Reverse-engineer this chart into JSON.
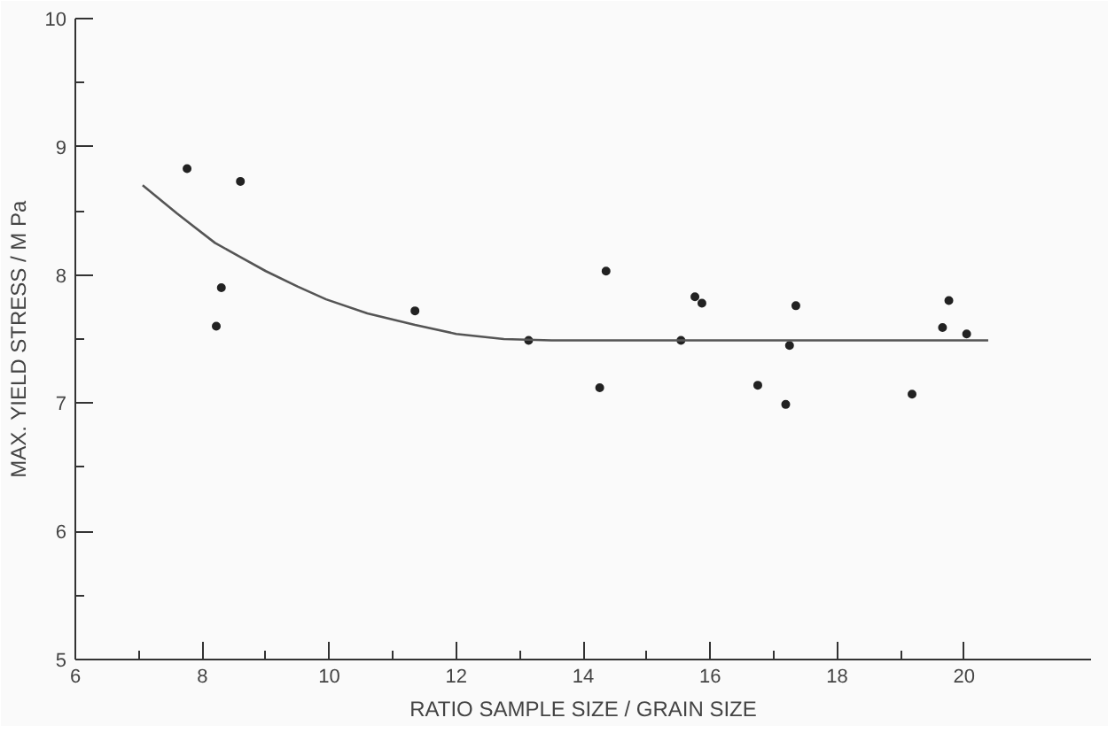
{
  "chart_data": {
    "type": "scatter",
    "xlabel": "RATIO SAMPLE SIZE / GRAIN SIZE",
    "ylabel": "MAX. YIELD STRESS / M Pa",
    "xlim": [
      6,
      22
    ],
    "ylim": [
      5,
      10
    ],
    "xticks": [
      6,
      {
        "value": 7,
        "label": null
      },
      8,
      {
        "value": 9,
        "label": null
      },
      10,
      {
        "value": 11,
        "label": null
      },
      12,
      {
        "value": 13,
        "label": null
      },
      14,
      {
        "value": 15,
        "label": null
      },
      16,
      {
        "value": 17,
        "label": null
      },
      18,
      {
        "value": 19,
        "label": null
      },
      20
    ],
    "yticks": [
      5,
      {
        "value": 5.5,
        "label": null
      },
      6,
      {
        "value": 6.5,
        "label": null
      },
      7,
      {
        "value": 7.5,
        "label": null
      },
      8,
      {
        "value": 8.5,
        "label": null
      },
      9,
      {
        "value": 9.5,
        "label": null
      },
      10
    ],
    "grid": false,
    "series": [
      {
        "marker": "circle",
        "color": "#222222",
        "x": [
          7.76,
          8.6,
          8.3,
          8.22,
          11.35,
          13.14,
          14.36,
          14.26,
          15.54,
          15.76,
          15.87,
          16.75,
          17.19,
          17.25,
          17.35,
          19.18,
          19.66,
          19.76,
          20.04
        ],
        "values": [
          8.83,
          8.73,
          7.9,
          7.6,
          7.72,
          7.49,
          8.03,
          7.12,
          7.49,
          7.83,
          7.78,
          7.14,
          6.99,
          7.45,
          7.76,
          7.07,
          7.59,
          7.8,
          7.54
        ]
      },
      {
        "type": "line",
        "color": "#555555",
        "line_style": "solid",
        "x": [
          7.06,
          7.6,
          8.2,
          8.6,
          9.0,
          9.5,
          9.95,
          10.6,
          11.35,
          12.0,
          12.75,
          13.5,
          20.38
        ],
        "values": [
          8.7,
          8.48,
          8.25,
          8.14,
          8.03,
          7.91,
          7.81,
          7.7,
          7.61,
          7.54,
          7.5,
          7.49,
          7.49
        ]
      }
    ]
  }
}
